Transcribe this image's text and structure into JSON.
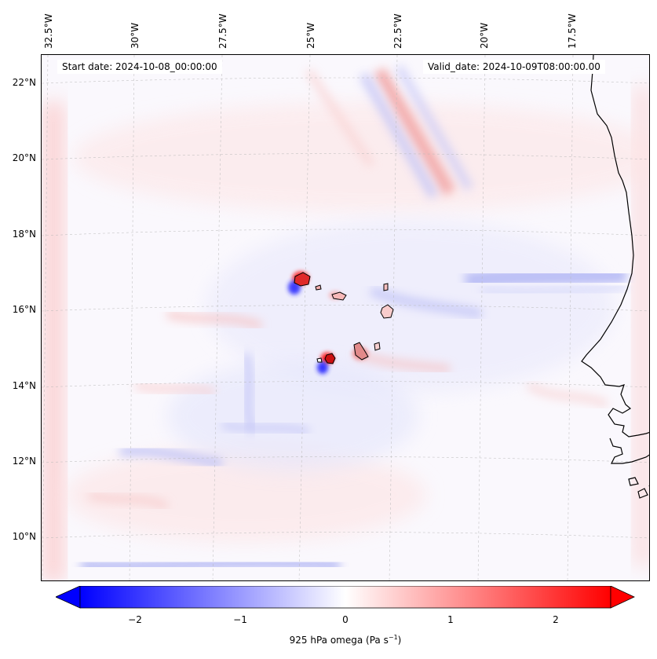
{
  "map": {
    "start_date": "Start date: 2024-10-08_00:00:00",
    "valid_date": "Valid_date: 2024-10-09T08:00:00.00",
    "field": "925 hPa omega",
    "units_prefix": "(Pa s",
    "units_exp": "−1",
    "units_suffix": ")",
    "longitude_labels": [
      "32.5°W",
      "30°W",
      "27.5°W",
      "25°W",
      "22.5°W",
      "20°W",
      "17.5°W"
    ],
    "latitude_labels": [
      "22°N",
      "20°N",
      "18°N",
      "16°N",
      "14°N",
      "12°N",
      "10°N"
    ],
    "colors": {
      "negative": "#0000ff",
      "zero": "#ffffff",
      "positive": "#ff0000",
      "coastline": "#000000",
      "gridline": "#b0b0b0"
    }
  },
  "colorbar": {
    "min": -2.7,
    "max": 2.7,
    "tick_labels": [
      "−2",
      "−1",
      "0",
      "1",
      "2"
    ],
    "tick_values": [
      -2,
      -1,
      0,
      1,
      2
    ]
  }
}
